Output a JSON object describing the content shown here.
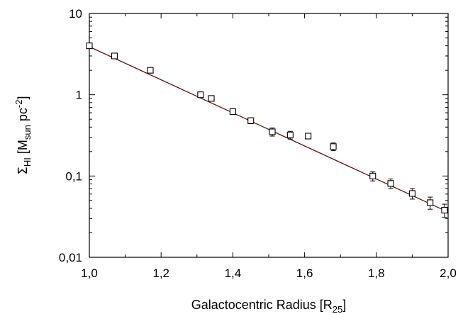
{
  "chart_data": {
    "type": "scatter",
    "title": "",
    "xlabel": {
      "main": "Galactocentric Radius [R",
      "sub": "25",
      "end": "]"
    },
    "ylabel": {
      "sigma": "Σ",
      "sub": "HI",
      "mid": " [M",
      "sub2": "sun",
      "mid2": " pc",
      "sup": "-2",
      "end": "]"
    },
    "x_scale": "linear",
    "y_scale": "log",
    "xlim": [
      1.0,
      2.0
    ],
    "ylim": [
      0.01,
      10
    ],
    "x_ticks": [
      {
        "value": 1.0,
        "label": "1,0"
      },
      {
        "value": 1.2,
        "label": "1,2"
      },
      {
        "value": 1.4,
        "label": "1,4"
      },
      {
        "value": 1.6,
        "label": "1,6"
      },
      {
        "value": 1.8,
        "label": "1,8"
      },
      {
        "value": 2.0,
        "label": "2,0"
      }
    ],
    "y_ticks": [
      {
        "value": 0.01,
        "label": "0,01"
      },
      {
        "value": 0.1,
        "label": "0,1"
      },
      {
        "value": 1,
        "label": "1"
      },
      {
        "value": 10,
        "label": "10"
      }
    ],
    "grid": false,
    "series": [
      {
        "marker": "open-square",
        "color": "#000000",
        "points": [
          {
            "x": 1.0,
            "y": 4.0,
            "err": 0.2
          },
          {
            "x": 1.07,
            "y": 3.0,
            "err": 0.15
          },
          {
            "x": 1.17,
            "y": 2.0,
            "err": 0.12
          },
          {
            "x": 1.31,
            "y": 1.0,
            "err": 0.06
          },
          {
            "x": 1.34,
            "y": 0.9,
            "err": 0.05
          },
          {
            "x": 1.4,
            "y": 0.62,
            "err": 0.04
          },
          {
            "x": 1.45,
            "y": 0.48,
            "err": 0.04
          },
          {
            "x": 1.51,
            "y": 0.35,
            "err": 0.04
          },
          {
            "x": 1.56,
            "y": 0.32,
            "err": 0.035
          },
          {
            "x": 1.61,
            "y": 0.31,
            "err": 0.02
          },
          {
            "x": 1.68,
            "y": 0.23,
            "err": 0.025
          },
          {
            "x": 1.79,
            "y": 0.1,
            "err": 0.013
          },
          {
            "x": 1.84,
            "y": 0.081,
            "err": 0.011
          },
          {
            "x": 1.9,
            "y": 0.061,
            "err": 0.009
          },
          {
            "x": 1.95,
            "y": 0.047,
            "err": 0.008
          },
          {
            "x": 1.99,
            "y": 0.038,
            "err": 0.007
          }
        ]
      }
    ],
    "fit_line": {
      "color": "#6b0f0f",
      "x": [
        1.0,
        2.0
      ],
      "y": [
        3.9,
        0.036
      ]
    }
  }
}
